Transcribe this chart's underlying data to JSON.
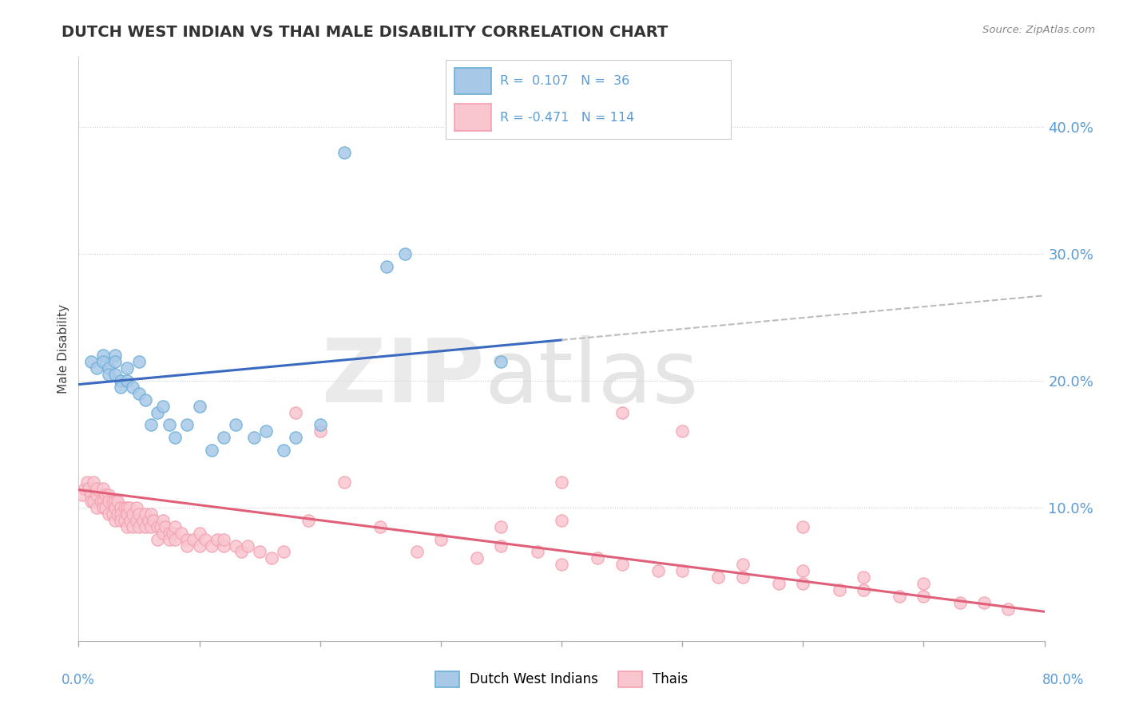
{
  "title": "DUTCH WEST INDIAN VS THAI MALE DISABILITY CORRELATION CHART",
  "source": "Source: ZipAtlas.com",
  "ylabel": "Male Disability",
  "xlim": [
    0.0,
    0.8
  ],
  "ylim": [
    -0.005,
    0.455
  ],
  "yticks": [
    0.1,
    0.2,
    0.3,
    0.4
  ],
  "ytick_labels": [
    "10.0%",
    "20.0%",
    "30.0%",
    "40.0%"
  ],
  "blue_face": "#a8c8e8",
  "blue_edge": "#6baed6",
  "pink_face": "#f9c6d0",
  "pink_edge": "#f4a0b0",
  "blue_line_color": "#3a6abf",
  "pink_line_color": "#e0607a",
  "dashed_line_color": "#bbbbbb",
  "tick_color": "#5b9bd5",
  "blue_scatter_x": [
    0.01,
    0.015,
    0.02,
    0.02,
    0.025,
    0.025,
    0.03,
    0.03,
    0.03,
    0.035,
    0.035,
    0.04,
    0.04,
    0.045,
    0.05,
    0.05,
    0.055,
    0.06,
    0.065,
    0.07,
    0.075,
    0.08,
    0.09,
    0.1,
    0.11,
    0.12,
    0.13,
    0.145,
    0.155,
    0.17,
    0.18,
    0.2,
    0.22,
    0.255,
    0.27,
    0.35
  ],
  "blue_scatter_y": [
    0.215,
    0.21,
    0.22,
    0.215,
    0.21,
    0.205,
    0.22,
    0.215,
    0.205,
    0.2,
    0.195,
    0.2,
    0.21,
    0.195,
    0.215,
    0.19,
    0.185,
    0.165,
    0.175,
    0.18,
    0.165,
    0.155,
    0.165,
    0.18,
    0.145,
    0.155,
    0.165,
    0.155,
    0.16,
    0.145,
    0.155,
    0.165,
    0.38,
    0.29,
    0.3,
    0.215
  ],
  "pink_scatter_x": [
    0.003,
    0.005,
    0.007,
    0.008,
    0.01,
    0.01,
    0.012,
    0.012,
    0.015,
    0.015,
    0.015,
    0.018,
    0.02,
    0.02,
    0.02,
    0.022,
    0.022,
    0.025,
    0.025,
    0.025,
    0.028,
    0.028,
    0.03,
    0.03,
    0.03,
    0.032,
    0.032,
    0.035,
    0.035,
    0.035,
    0.038,
    0.038,
    0.04,
    0.04,
    0.04,
    0.042,
    0.043,
    0.045,
    0.045,
    0.048,
    0.048,
    0.05,
    0.05,
    0.053,
    0.055,
    0.055,
    0.058,
    0.06,
    0.06,
    0.062,
    0.065,
    0.065,
    0.068,
    0.07,
    0.07,
    0.072,
    0.075,
    0.075,
    0.078,
    0.08,
    0.08,
    0.085,
    0.09,
    0.09,
    0.095,
    0.1,
    0.1,
    0.105,
    0.11,
    0.115,
    0.12,
    0.12,
    0.13,
    0.135,
    0.14,
    0.15,
    0.16,
    0.17,
    0.18,
    0.19,
    0.2,
    0.22,
    0.25,
    0.28,
    0.3,
    0.33,
    0.35,
    0.38,
    0.4,
    0.43,
    0.45,
    0.48,
    0.5,
    0.53,
    0.55,
    0.58,
    0.6,
    0.63,
    0.65,
    0.68,
    0.7,
    0.73,
    0.75,
    0.77,
    0.35,
    0.4,
    0.45,
    0.5,
    0.55,
    0.6,
    0.65,
    0.7,
    0.4,
    0.6
  ],
  "pink_scatter_y": [
    0.11,
    0.115,
    0.12,
    0.115,
    0.11,
    0.105,
    0.12,
    0.105,
    0.11,
    0.1,
    0.115,
    0.105,
    0.115,
    0.105,
    0.1,
    0.11,
    0.1,
    0.11,
    0.105,
    0.095,
    0.105,
    0.095,
    0.105,
    0.1,
    0.09,
    0.105,
    0.095,
    0.1,
    0.095,
    0.09,
    0.1,
    0.09,
    0.1,
    0.095,
    0.085,
    0.1,
    0.09,
    0.095,
    0.085,
    0.1,
    0.09,
    0.095,
    0.085,
    0.09,
    0.095,
    0.085,
    0.09,
    0.095,
    0.085,
    0.09,
    0.085,
    0.075,
    0.085,
    0.09,
    0.08,
    0.085,
    0.08,
    0.075,
    0.08,
    0.085,
    0.075,
    0.08,
    0.075,
    0.07,
    0.075,
    0.08,
    0.07,
    0.075,
    0.07,
    0.075,
    0.07,
    0.075,
    0.07,
    0.065,
    0.07,
    0.065,
    0.06,
    0.065,
    0.175,
    0.09,
    0.16,
    0.12,
    0.085,
    0.065,
    0.075,
    0.06,
    0.07,
    0.065,
    0.055,
    0.06,
    0.055,
    0.05,
    0.05,
    0.045,
    0.045,
    0.04,
    0.04,
    0.035,
    0.035,
    0.03,
    0.03,
    0.025,
    0.025,
    0.02,
    0.085,
    0.09,
    0.175,
    0.16,
    0.055,
    0.05,
    0.045,
    0.04,
    0.12,
    0.085
  ],
  "blue_line_x0": 0.0,
  "blue_line_y0": 0.197,
  "blue_line_x1": 0.4,
  "blue_line_y1": 0.232,
  "dashed_line_x0": 0.4,
  "dashed_line_y0": 0.232,
  "dashed_line_x1": 0.8,
  "dashed_line_y1": 0.267,
  "pink_line_x0": 0.0,
  "pink_line_y0": 0.114,
  "pink_line_x1": 0.8,
  "pink_line_y1": 0.018
}
